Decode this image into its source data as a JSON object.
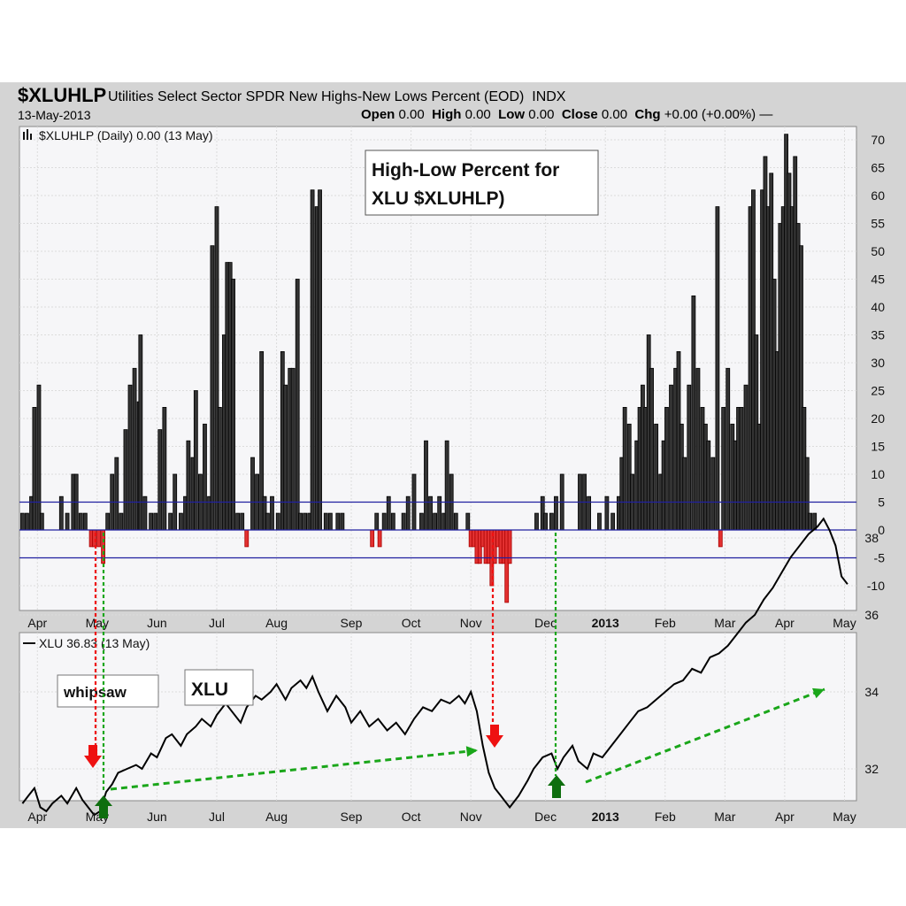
{
  "header": {
    "symbol": "$XLUHLP",
    "description": "Utilities Select Sector SPDR New Highs-New Lows Percent (EOD)",
    "exchange": "INDX",
    "date": "13-May-2013",
    "open_label": "Open",
    "open": "0.00",
    "high_label": "High",
    "high": "0.00",
    "low_label": "Low",
    "low": "0.00",
    "close_label": "Close",
    "close": "0.00",
    "chg_label": "Chg",
    "chg": "+0.00 (+0.00%)"
  },
  "colors": {
    "up": "#111111",
    "down": "#cc1111",
    "line": "#000000",
    "ref": "#2020a0",
    "green": "#1aa61a",
    "red": "#ee1111",
    "dark_green": "#0e6e0e"
  },
  "icons": [
    "bar-chart-icon",
    "line-legend-icon",
    "red-down-arrow-icon",
    "green-up-arrow-icon"
  ],
  "chart_data": [
    {
      "type": "bar",
      "legend": "$XLUHLP (Daily) 0.00 (13 May)",
      "annotation": "High-Low Percent for XLU $XLUHLP)",
      "yticks": [
        70,
        65,
        60,
        55,
        50,
        45,
        40,
        35,
        30,
        25,
        20,
        15,
        10,
        5,
        0,
        -5,
        -10
      ],
      "ylim": [
        -13,
        72
      ],
      "reference_lines": [
        5,
        0,
        -5
      ],
      "month_labels": [
        "Apr",
        "May",
        "Jun",
        "Jul",
        "Aug",
        "Sep",
        "Oct",
        "Nov",
        "Dec",
        "2013",
        "Feb",
        "Mar",
        "Apr",
        "May"
      ],
      "month_positions": [
        0.5,
        2.5,
        4.5,
        6.5,
        8.5,
        11,
        13,
        15,
        17.5,
        19.5,
        21.5,
        23.5,
        25.5,
        27.5
      ],
      "bars": [
        {
          "x": 0,
          "v": 3
        },
        {
          "x": 0.15,
          "v": 3
        },
        {
          "x": 0.3,
          "v": 6
        },
        {
          "x": 0.4,
          "v": 22
        },
        {
          "x": 0.55,
          "v": 26
        },
        {
          "x": 0.65,
          "v": 3
        },
        {
          "x": 1.3,
          "v": 6
        },
        {
          "x": 1.5,
          "v": 3
        },
        {
          "x": 1.7,
          "v": 10
        },
        {
          "x": 1.8,
          "v": 10
        },
        {
          "x": 1.95,
          "v": 3
        },
        {
          "x": 2.1,
          "v": 3
        },
        {
          "x": 2.3,
          "v": -3
        },
        {
          "x": 2.4,
          "v": -3
        },
        {
          "x": 2.55,
          "v": -3
        },
        {
          "x": 2.7,
          "v": -6
        },
        {
          "x": 2.85,
          "v": 3
        },
        {
          "x": 3.0,
          "v": 10
        },
        {
          "x": 3.15,
          "v": 13
        },
        {
          "x": 3.3,
          "v": 3
        },
        {
          "x": 3.45,
          "v": 18
        },
        {
          "x": 3.6,
          "v": 26
        },
        {
          "x": 3.75,
          "v": 29
        },
        {
          "x": 3.9,
          "v": 23
        },
        {
          "x": 3.95,
          "v": 35
        },
        {
          "x": 4.1,
          "v": 6
        },
        {
          "x": 4.3,
          "v": 3
        },
        {
          "x": 4.45,
          "v": 3
        },
        {
          "x": 4.6,
          "v": 18
        },
        {
          "x": 4.75,
          "v": 22
        },
        {
          "x": 4.95,
          "v": 3
        },
        {
          "x": 5.1,
          "v": 10
        },
        {
          "x": 5.3,
          "v": 3
        },
        {
          "x": 5.45,
          "v": 6
        },
        {
          "x": 5.55,
          "v": 16
        },
        {
          "x": 5.7,
          "v": 13
        },
        {
          "x": 5.8,
          "v": 25
        },
        {
          "x": 5.95,
          "v": 10
        },
        {
          "x": 6.1,
          "v": 19
        },
        {
          "x": 6.25,
          "v": 6
        },
        {
          "x": 6.35,
          "v": 51
        },
        {
          "x": 6.5,
          "v": 58
        },
        {
          "x": 6.6,
          "v": 22
        },
        {
          "x": 6.75,
          "v": 35
        },
        {
          "x": 6.85,
          "v": 48
        },
        {
          "x": 6.95,
          "v": 48
        },
        {
          "x": 7.05,
          "v": 45
        },
        {
          "x": 7.2,
          "v": 3
        },
        {
          "x": 7.35,
          "v": 3
        },
        {
          "x": 7.5,
          "v": -3
        },
        {
          "x": 7.7,
          "v": 13
        },
        {
          "x": 7.85,
          "v": 10
        },
        {
          "x": 8.0,
          "v": 32
        },
        {
          "x": 8.1,
          "v": 6
        },
        {
          "x": 8.2,
          "v": 3
        },
        {
          "x": 8.35,
          "v": 6
        },
        {
          "x": 8.55,
          "v": 3
        },
        {
          "x": 8.7,
          "v": 32
        },
        {
          "x": 8.8,
          "v": 26
        },
        {
          "x": 8.95,
          "v": 29
        },
        {
          "x": 9.05,
          "v": 29
        },
        {
          "x": 9.2,
          "v": 45
        },
        {
          "x": 9.3,
          "v": 3
        },
        {
          "x": 9.45,
          "v": 3
        },
        {
          "x": 9.6,
          "v": 3
        },
        {
          "x": 9.7,
          "v": 61
        },
        {
          "x": 9.85,
          "v": 58
        },
        {
          "x": 9.95,
          "v": 61
        },
        {
          "x": 10.15,
          "v": 3
        },
        {
          "x": 10.3,
          "v": 3
        },
        {
          "x": 10.55,
          "v": 3
        },
        {
          "x": 10.7,
          "v": 3
        },
        {
          "x": 11.7,
          "v": -3
        },
        {
          "x": 11.85,
          "v": 3
        },
        {
          "x": 11.95,
          "v": -3
        },
        {
          "x": 12.1,
          "v": 3
        },
        {
          "x": 12.25,
          "v": 6
        },
        {
          "x": 12.4,
          "v": 3
        },
        {
          "x": 12.75,
          "v": 3
        },
        {
          "x": 12.9,
          "v": 6
        },
        {
          "x": 13.1,
          "v": 10
        },
        {
          "x": 13.35,
          "v": 3
        },
        {
          "x": 13.5,
          "v": 16
        },
        {
          "x": 13.65,
          "v": 6
        },
        {
          "x": 13.8,
          "v": 3
        },
        {
          "x": 13.95,
          "v": 6
        },
        {
          "x": 14.1,
          "v": 3
        },
        {
          "x": 14.2,
          "v": 16
        },
        {
          "x": 14.35,
          "v": 10
        },
        {
          "x": 14.5,
          "v": 3
        },
        {
          "x": 14.9,
          "v": 3
        },
        {
          "x": 15.0,
          "v": -3
        },
        {
          "x": 15.1,
          "v": -3
        },
        {
          "x": 15.2,
          "v": -6
        },
        {
          "x": 15.3,
          "v": -6
        },
        {
          "x": 15.4,
          "v": -3
        },
        {
          "x": 15.5,
          "v": -6
        },
        {
          "x": 15.6,
          "v": -6
        },
        {
          "x": 15.7,
          "v": -10
        },
        {
          "x": 15.8,
          "v": -6
        },
        {
          "x": 15.9,
          "v": -3
        },
        {
          "x": 16.0,
          "v": -6
        },
        {
          "x": 16.1,
          "v": -6
        },
        {
          "x": 16.2,
          "v": -13
        },
        {
          "x": 16.3,
          "v": -6
        },
        {
          "x": 17.2,
          "v": 3
        },
        {
          "x": 17.4,
          "v": 6
        },
        {
          "x": 17.5,
          "v": 3
        },
        {
          "x": 17.7,
          "v": 3
        },
        {
          "x": 17.85,
          "v": 6
        },
        {
          "x": 18.05,
          "v": 10
        },
        {
          "x": 18.65,
          "v": 10
        },
        {
          "x": 18.8,
          "v": 10
        },
        {
          "x": 18.95,
          "v": 6
        },
        {
          "x": 19.3,
          "v": 3
        },
        {
          "x": 19.55,
          "v": 6
        },
        {
          "x": 19.75,
          "v": 3
        },
        {
          "x": 19.95,
          "v": 6
        },
        {
          "x": 20.05,
          "v": 13
        },
        {
          "x": 20.15,
          "v": 22
        },
        {
          "x": 20.3,
          "v": 19
        },
        {
          "x": 20.4,
          "v": 10
        },
        {
          "x": 20.55,
          "v": 16
        },
        {
          "x": 20.65,
          "v": 22
        },
        {
          "x": 20.75,
          "v": 26
        },
        {
          "x": 20.85,
          "v": 22
        },
        {
          "x": 20.95,
          "v": 35
        },
        {
          "x": 21.05,
          "v": 29
        },
        {
          "x": 21.2,
          "v": 19
        },
        {
          "x": 21.35,
          "v": 10
        },
        {
          "x": 21.45,
          "v": 16
        },
        {
          "x": 21.55,
          "v": 22
        },
        {
          "x": 21.7,
          "v": 26
        },
        {
          "x": 21.85,
          "v": 29
        },
        {
          "x": 21.95,
          "v": 32
        },
        {
          "x": 22.05,
          "v": 19
        },
        {
          "x": 22.15,
          "v": 13
        },
        {
          "x": 22.3,
          "v": 26
        },
        {
          "x": 22.45,
          "v": 42
        },
        {
          "x": 22.6,
          "v": 29
        },
        {
          "x": 22.75,
          "v": 22
        },
        {
          "x": 22.85,
          "v": 19
        },
        {
          "x": 22.95,
          "v": 16
        },
        {
          "x": 23.1,
          "v": 13
        },
        {
          "x": 23.25,
          "v": 58
        },
        {
          "x": 23.35,
          "v": -3
        },
        {
          "x": 23.45,
          "v": 22
        },
        {
          "x": 23.6,
          "v": 29
        },
        {
          "x": 23.75,
          "v": 19
        },
        {
          "x": 23.85,
          "v": 16
        },
        {
          "x": 23.95,
          "v": 22
        },
        {
          "x": 24.05,
          "v": 22
        },
        {
          "x": 24.2,
          "v": 26
        },
        {
          "x": 24.35,
          "v": 58
        },
        {
          "x": 24.45,
          "v": 61
        },
        {
          "x": 24.55,
          "v": 35
        },
        {
          "x": 24.65,
          "v": 19
        },
        {
          "x": 24.75,
          "v": 61
        },
        {
          "x": 24.85,
          "v": 67
        },
        {
          "x": 24.95,
          "v": 58
        },
        {
          "x": 25.05,
          "v": 64
        },
        {
          "x": 25.15,
          "v": 45
        },
        {
          "x": 25.25,
          "v": 32
        },
        {
          "x": 25.35,
          "v": 55
        },
        {
          "x": 25.45,
          "v": 58
        },
        {
          "x": 25.55,
          "v": 71
        },
        {
          "x": 25.65,
          "v": 64
        },
        {
          "x": 25.75,
          "v": 58
        },
        {
          "x": 25.85,
          "v": 67
        },
        {
          "x": 25.95,
          "v": 55
        },
        {
          "x": 26.05,
          "v": 51
        },
        {
          "x": 26.15,
          "v": 22
        },
        {
          "x": 26.25,
          "v": 13
        },
        {
          "x": 26.35,
          "v": 3
        },
        {
          "x": 26.5,
          "v": 3
        }
      ]
    },
    {
      "type": "line",
      "legend": "XLU 36.83 (13 May)",
      "series_name": "XLU",
      "yticks": [
        38,
        36,
        34,
        32
      ],
      "ylim": [
        30.5,
        39
      ],
      "month_labels": [
        "Apr",
        "May",
        "Jun",
        "Jul",
        "Aug",
        "Sep",
        "Oct",
        "Nov",
        "Dec",
        "2013",
        "Feb",
        "Mar",
        "Apr",
        "May"
      ],
      "points": [
        [
          0,
          31.1
        ],
        [
          0.2,
          31.3
        ],
        [
          0.4,
          31.5
        ],
        [
          0.6,
          31.0
        ],
        [
          0.8,
          30.9
        ],
        [
          1.0,
          31.1
        ],
        [
          1.3,
          31.3
        ],
        [
          1.5,
          31.1
        ],
        [
          1.8,
          31.5
        ],
        [
          2.0,
          31.2
        ],
        [
          2.2,
          31.0
        ],
        [
          2.4,
          30.8
        ],
        [
          2.6,
          30.9
        ],
        [
          2.8,
          31.4
        ],
        [
          3.0,
          31.6
        ],
        [
          3.2,
          31.9
        ],
        [
          3.5,
          32.0
        ],
        [
          3.8,
          32.1
        ],
        [
          4.0,
          32.0
        ],
        [
          4.3,
          32.4
        ],
        [
          4.5,
          32.3
        ],
        [
          4.8,
          32.8
        ],
        [
          5.0,
          32.9
        ],
        [
          5.3,
          32.6
        ],
        [
          5.5,
          32.9
        ],
        [
          5.8,
          33.1
        ],
        [
          6.0,
          33.3
        ],
        [
          6.3,
          33.1
        ],
        [
          6.5,
          33.4
        ],
        [
          6.8,
          33.7
        ],
        [
          7.0,
          33.5
        ],
        [
          7.3,
          33.2
        ],
        [
          7.5,
          33.6
        ],
        [
          7.8,
          33.9
        ],
        [
          8.0,
          33.8
        ],
        [
          8.3,
          34.0
        ],
        [
          8.5,
          34.2
        ],
        [
          8.8,
          33.8
        ],
        [
          9.0,
          34.1
        ],
        [
          9.3,
          34.3
        ],
        [
          9.5,
          34.1
        ],
        [
          9.7,
          34.4
        ],
        [
          9.9,
          34.0
        ],
        [
          10.2,
          33.5
        ],
        [
          10.5,
          33.9
        ],
        [
          10.8,
          33.6
        ],
        [
          11.0,
          33.2
        ],
        [
          11.3,
          33.5
        ],
        [
          11.6,
          33.1
        ],
        [
          11.9,
          33.3
        ],
        [
          12.2,
          33.0
        ],
        [
          12.5,
          33.2
        ],
        [
          12.8,
          32.9
        ],
        [
          13.1,
          33.3
        ],
        [
          13.4,
          33.6
        ],
        [
          13.7,
          33.5
        ],
        [
          14.0,
          33.8
        ],
        [
          14.3,
          33.7
        ],
        [
          14.6,
          33.9
        ],
        [
          14.8,
          33.7
        ],
        [
          15.0,
          34.0
        ],
        [
          15.2,
          33.5
        ],
        [
          15.4,
          32.6
        ],
        [
          15.6,
          31.9
        ],
        [
          15.8,
          31.5
        ],
        [
          16.0,
          31.3
        ],
        [
          16.3,
          31.0
        ],
        [
          16.6,
          31.3
        ],
        [
          16.9,
          31.7
        ],
        [
          17.1,
          32.0
        ],
        [
          17.4,
          32.3
        ],
        [
          17.7,
          32.4
        ],
        [
          17.9,
          32.0
        ],
        [
          18.1,
          32.3
        ],
        [
          18.4,
          32.6
        ],
        [
          18.6,
          32.2
        ],
        [
          18.9,
          32.0
        ],
        [
          19.1,
          32.4
        ],
        [
          19.4,
          32.3
        ],
        [
          19.7,
          32.6
        ],
        [
          20.0,
          32.9
        ],
        [
          20.3,
          33.2
        ],
        [
          20.6,
          33.5
        ],
        [
          20.9,
          33.6
        ],
        [
          21.2,
          33.8
        ],
        [
          21.5,
          34.0
        ],
        [
          21.8,
          34.2
        ],
        [
          22.1,
          34.3
        ],
        [
          22.4,
          34.6
        ],
        [
          22.7,
          34.5
        ],
        [
          23.0,
          34.9
        ],
        [
          23.3,
          35.0
        ],
        [
          23.6,
          35.2
        ],
        [
          23.9,
          35.5
        ],
        [
          24.2,
          35.8
        ],
        [
          24.5,
          36.0
        ],
        [
          24.8,
          36.4
        ],
        [
          25.1,
          36.7
        ],
        [
          25.4,
          37.1
        ],
        [
          25.7,
          37.5
        ],
        [
          26.0,
          37.8
        ],
        [
          26.3,
          38.1
        ],
        [
          26.6,
          38.3
        ],
        [
          26.8,
          38.5
        ],
        [
          27.0,
          38.2
        ],
        [
          27.2,
          37.8
        ],
        [
          27.4,
          37.0
        ],
        [
          27.6,
          36.8
        ]
      ],
      "labels": [
        "whipsaw",
        "XLU"
      ]
    }
  ]
}
